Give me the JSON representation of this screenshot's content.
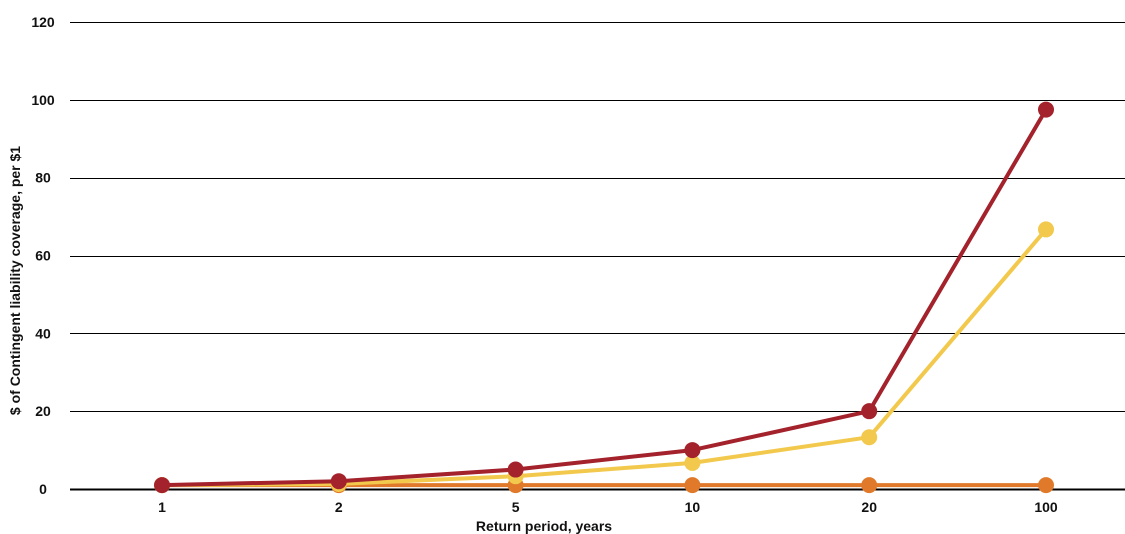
{
  "chart_data": {
    "type": "line",
    "title": "",
    "xlabel": "Return period, years",
    "ylabel": "$ of Contingent liability coverage, per $1",
    "categories": [
      "1",
      "2",
      "5",
      "10",
      "20",
      "100"
    ],
    "ylim": [
      0,
      120
    ],
    "yticks": [
      0,
      20,
      40,
      60,
      80,
      100,
      120
    ],
    "grid": true,
    "legend": "none",
    "series": [
      {
        "color": "#e07a2a",
        "values": [
          1,
          1,
          1,
          1,
          1,
          1
        ]
      },
      {
        "color": "#f2c94c",
        "values": [
          1,
          1.3,
          3.3,
          6.7,
          13.3,
          66.7
        ]
      },
      {
        "color": "#a3222b",
        "values": [
          1,
          2,
          5,
          10,
          20,
          97.5
        ]
      }
    ]
  }
}
